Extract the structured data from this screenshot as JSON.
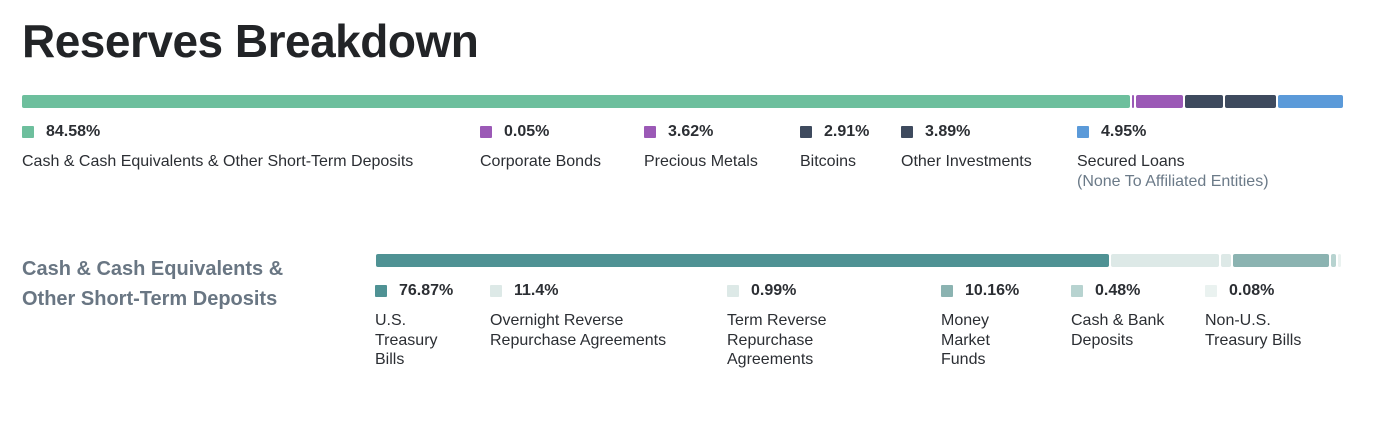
{
  "title": "Reserves Breakdown",
  "chart_data": [
    {
      "type": "bar",
      "stacked": true,
      "orientation": "horizontal",
      "categories": [
        "Cash & Cash Equivalents & Other Short-Term Deposits",
        "Corporate Bonds",
        "Precious Metals",
        "Bitcoins",
        "Other Investments",
        "Secured Loans"
      ],
      "sublabels": [
        "",
        "",
        "",
        "",
        "",
        "(None To Affiliated Entities)"
      ],
      "values": [
        84.58,
        0.05,
        3.62,
        2.91,
        3.89,
        4.95
      ],
      "labels": [
        "84.58%",
        "0.05%",
        "3.62%",
        "2.91%",
        "3.89%",
        "4.95%"
      ],
      "colors": [
        "#6dbf9d",
        "#9b59b6",
        "#9b59b6",
        "#3e4a5e",
        "#3e4a5e",
        "#5b9ad9"
      ]
    },
    {
      "type": "bar",
      "stacked": true,
      "orientation": "horizontal",
      "title": "Cash & Cash Equivalents & Other Short-Term Deposits",
      "categories": [
        "U.S. Treasury Bills",
        "Overnight Reverse Repurchase Agreements",
        "Term Reverse Repurchase Agreements",
        "Money Market Funds",
        "Cash & Bank Deposits",
        "Non-U.S. Treasury Bills"
      ],
      "values": [
        76.87,
        11.4,
        0.99,
        10.16,
        0.48,
        0.08
      ],
      "labels": [
        "76.87%",
        "11.4%",
        "0.99%",
        "10.16%",
        "0.48%",
        "0.08%"
      ],
      "colors": [
        "#4f9294",
        "#dde9e7",
        "#dde9e7",
        "#8bb3b1",
        "#b7d3d0",
        "#eaf2f0"
      ]
    }
  ]
}
